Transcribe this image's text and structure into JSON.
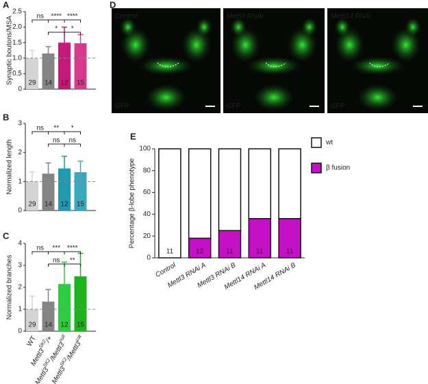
{
  "chart_data": [
    {
      "type": "bar",
      "panel": "A",
      "ylabel": "Synaptic boutons/MSA",
      "label_color": "#c8177a",
      "values": [
        1.0,
        1.15,
        1.5,
        1.48
      ],
      "errors": [
        0.25,
        0.22,
        0.5,
        0.28
      ],
      "n": [
        "29",
        "14",
        "12",
        "15"
      ],
      "colors": [
        "#d4d4d4",
        "#858585",
        "#c8177a",
        "#d9388f"
      ],
      "ylim": [
        0,
        2.5
      ],
      "yticks": [
        0,
        0.5,
        {
          "value": 1,
          "label": "1.0"
        },
        1.5,
        {
          "value": 2,
          "label": "2.0"
        },
        2.5
      ],
      "reference_line": 1,
      "significance": [
        "ns",
        "****",
        "****",
        "*",
        "*"
      ]
    },
    {
      "type": "bar",
      "panel": "B",
      "ylabel": "Normalized length",
      "label_color": "#1f9ab0",
      "values": [
        1.0,
        1.27,
        1.45,
        1.32
      ],
      "errors": [
        0.33,
        0.37,
        0.42,
        0.38
      ],
      "n": [
        "29",
        "14",
        "12",
        "15"
      ],
      "colors": [
        "#d4d4d4",
        "#858585",
        "#1f9ab0",
        "#3aa9bd"
      ],
      "ylim": [
        0,
        3
      ],
      "yticks": [
        0,
        1,
        2,
        3
      ],
      "reference_line": 1,
      "significance": [
        "ns",
        "**",
        "*",
        "ns",
        "ns"
      ]
    },
    {
      "type": "bar",
      "panel": "C",
      "ylabel": "Normalized branches",
      "label_color": "#22b822",
      "values": [
        1.0,
        1.35,
        2.15,
        2.5
      ],
      "errors": [
        0.6,
        0.55,
        1.0,
        1.05
      ],
      "n": [
        "29",
        "14",
        "12",
        "15"
      ],
      "colors": [
        "#d4d4d4",
        "#858585",
        "#2ecc40",
        "#1db31d"
      ],
      "ylim": [
        0,
        4
      ],
      "yticks": [
        0,
        1,
        2,
        3,
        4
      ],
      "reference_line": 1,
      "significance": [
        "ns",
        "***",
        "****",
        "ns",
        "**"
      ],
      "categories": [
        [
          "WT"
        ],
        [
          "Mettl3",
          "SK2",
          "/+"
        ],
        [
          "Mettl3",
          "SK2",
          "/Mettl3",
          "null"
        ],
        [
          "Mettl3",
          "SK2",
          "/Mettl3",
          "cat"
        ]
      ]
    },
    {
      "type": "stacked_bar",
      "panel": "E",
      "ylabel": "Percentage β-lobe phenotype",
      "categories": [
        "Control",
        "Mettl3 RNAi A",
        "Mettl3 RNAi B",
        "Mettl14 RNAi A",
        "Mettl14 RNAi B"
      ],
      "series": [
        {
          "name": "β fusion",
          "color": "#c511c5",
          "values": [
            0,
            18,
            25,
            36,
            36
          ]
        },
        {
          "name": "wt",
          "color": "#ffffff",
          "values": [
            100,
            82,
            75,
            64,
            64
          ]
        }
      ],
      "n": [
        "11",
        "12",
        "11",
        "11",
        "11"
      ],
      "ylim": [
        0,
        100
      ],
      "yticks": [
        0,
        20,
        40,
        60,
        80,
        100
      ]
    }
  ],
  "images": {
    "panel": "D",
    "items": [
      {
        "title": "Control",
        "channel": "GFP"
      },
      {
        "title": "Mettl3 RNAi",
        "channel": "GFP"
      },
      {
        "title": "Mettl14 RNAi",
        "channel": "GFP"
      }
    ]
  }
}
